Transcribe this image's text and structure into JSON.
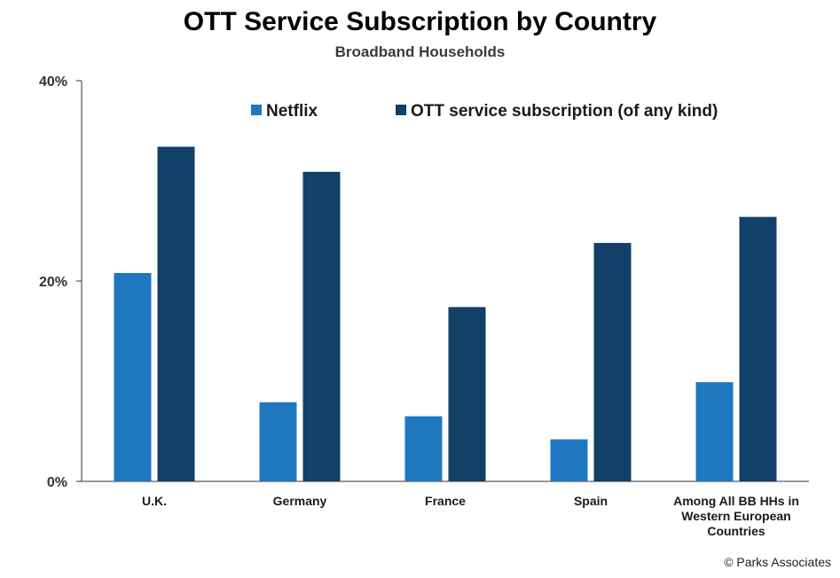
{
  "chart_data": {
    "type": "bar",
    "title": "OTT Service Subscription by Country",
    "subtitle": "Broadband Households",
    "categories": [
      [
        "U.K."
      ],
      [
        "Germany"
      ],
      [
        "France"
      ],
      [
        "Spain"
      ],
      [
        "Among All BB HHs in",
        "Western European",
        "Countries"
      ]
    ],
    "series": [
      {
        "name": "Netflix",
        "color": "#1f77c0",
        "values": [
          20.8,
          7.9,
          6.5,
          4.2,
          9.9
        ]
      },
      {
        "name": "OTT service subscription (of any kind)",
        "color": "#114069",
        "values": [
          33.4,
          30.9,
          17.4,
          23.8,
          26.4
        ]
      }
    ],
    "yticks": [
      "0%",
      "20%",
      "40%"
    ],
    "ylim": [
      0,
      40
    ],
    "legend_position": "top-center",
    "grid": false
  },
  "credit": "© Parks Associates"
}
